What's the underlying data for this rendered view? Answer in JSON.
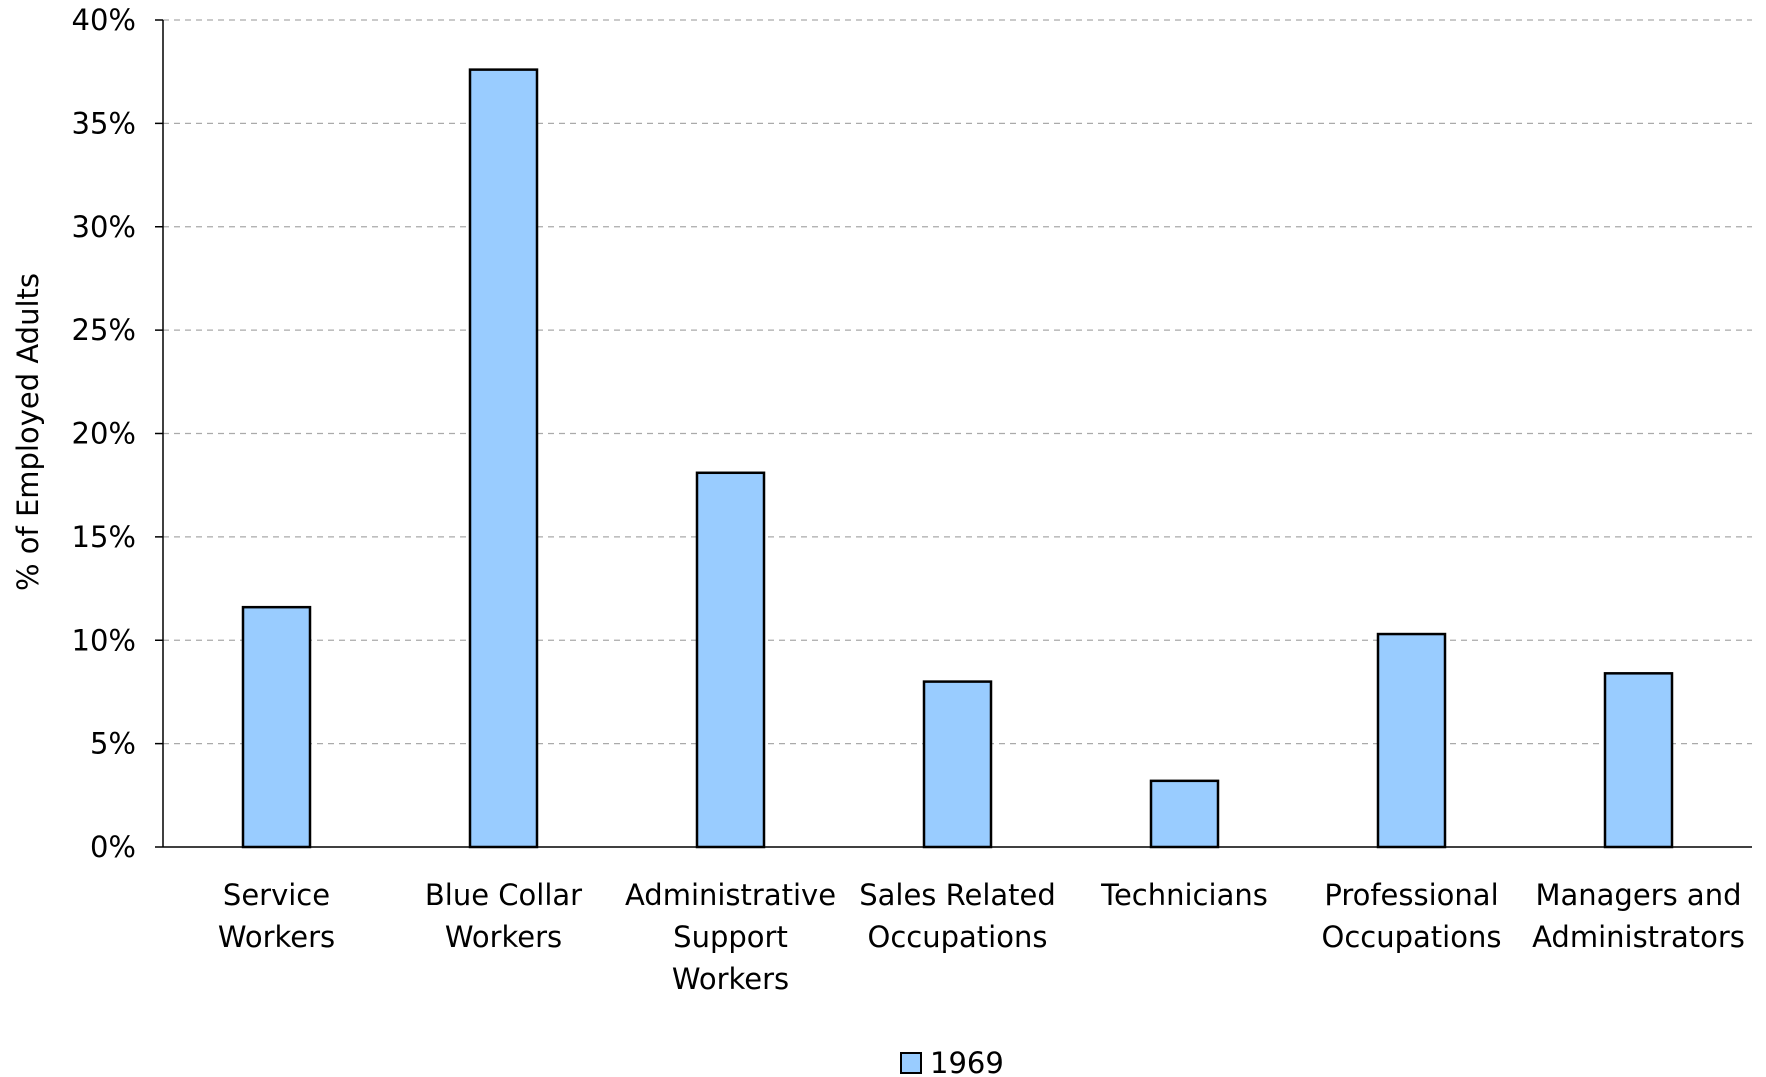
{
  "chart_data": {
    "type": "bar",
    "ylabel": "% of Employed Adults",
    "xlabel": "",
    "ylim": [
      0,
      40
    ],
    "y_ticks": [
      0,
      5,
      10,
      15,
      20,
      25,
      30,
      35,
      40
    ],
    "y_tick_format": "percent",
    "grid": "horizontal-dashed",
    "legend_position": "bottom-center",
    "categories": [
      [
        "Service",
        "Workers"
      ],
      [
        "Blue Collar",
        "Workers"
      ],
      [
        "Administrative",
        "Support",
        "Workers"
      ],
      [
        "Sales Related",
        "Occupations"
      ],
      [
        "Technicians"
      ],
      [
        "Professional",
        "Occupations"
      ],
      [
        "Managers and",
        "Administrators"
      ]
    ],
    "series": [
      {
        "name": "1969",
        "color": "#99CCFF",
        "values": [
          11.6,
          37.6,
          18.1,
          8.0,
          3.2,
          10.3,
          8.4
        ]
      }
    ]
  }
}
